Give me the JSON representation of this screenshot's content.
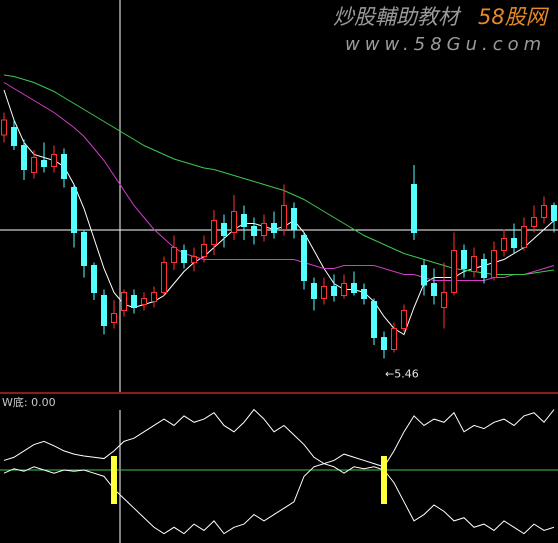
{
  "watermark": {
    "title": "炒股輔助教材",
    "brand": "58股网",
    "url": "www.58Gu.com"
  },
  "chart_data": [
    {
      "type": "candlestick",
      "up_color": "#ff3232",
      "down_color": "#54ffff",
      "open": [
        6.95,
        7.0,
        6.88,
        6.7,
        6.78,
        6.74,
        6.82,
        6.6,
        6.3,
        6.08,
        5.88,
        5.7,
        5.78,
        5.88,
        5.82,
        5.84,
        5.9,
        6.1,
        6.18,
        6.1,
        6.14,
        6.22,
        6.36,
        6.3,
        6.42,
        6.34,
        6.28,
        6.36,
        6.32,
        6.46,
        6.28,
        5.96,
        5.86,
        5.94,
        5.88,
        5.96,
        5.92,
        5.84,
        5.6,
        5.52,
        5.66,
        6.62,
        6.08,
        5.96,
        5.8,
        5.9,
        6.18,
        6.04,
        6.12,
        6.0,
        6.18,
        6.26,
        6.2,
        6.34,
        6.4,
        6.48
      ],
      "high": [
        7.1,
        7.05,
        6.92,
        6.85,
        6.9,
        6.88,
        6.86,
        6.62,
        6.32,
        6.1,
        5.92,
        5.85,
        5.92,
        5.92,
        5.9,
        5.94,
        6.14,
        6.28,
        6.22,
        6.2,
        6.28,
        6.45,
        6.42,
        6.55,
        6.48,
        6.4,
        6.42,
        6.44,
        6.62,
        6.5,
        6.3,
        6.0,
        6.0,
        6.02,
        6.02,
        6.04,
        5.96,
        5.86,
        5.64,
        5.7,
        5.82,
        6.75,
        6.12,
        6.06,
        6.1,
        6.3,
        6.22,
        6.2,
        6.16,
        6.24,
        6.32,
        6.36,
        6.4,
        6.48,
        6.54,
        6.5
      ],
      "low": [
        6.9,
        6.85,
        6.65,
        6.66,
        6.7,
        6.7,
        6.6,
        6.2,
        6.0,
        5.85,
        5.62,
        5.66,
        5.74,
        5.76,
        5.78,
        5.8,
        5.88,
        6.05,
        6.06,
        6.04,
        6.1,
        6.15,
        6.2,
        6.25,
        6.25,
        6.22,
        6.24,
        6.26,
        6.28,
        6.26,
        5.92,
        5.78,
        5.82,
        5.84,
        5.86,
        5.88,
        5.82,
        5.55,
        5.46,
        5.5,
        5.64,
        6.25,
        5.88,
        5.82,
        5.66,
        5.88,
        6.0,
        6.0,
        5.96,
        5.98,
        6.14,
        6.16,
        6.18,
        6.3,
        6.36,
        6.3
      ],
      "close": [
        7.05,
        6.88,
        6.72,
        6.8,
        6.74,
        6.82,
        6.66,
        6.3,
        6.08,
        5.9,
        5.68,
        5.76,
        5.9,
        5.8,
        5.86,
        5.9,
        6.1,
        6.2,
        6.1,
        6.14,
        6.22,
        6.38,
        6.28,
        6.44,
        6.34,
        6.28,
        6.36,
        6.3,
        6.48,
        6.32,
        5.98,
        5.86,
        5.94,
        5.88,
        5.96,
        5.9,
        5.86,
        5.6,
        5.52,
        5.66,
        5.78,
        6.3,
        5.95,
        5.88,
        5.9,
        6.18,
        6.06,
        6.14,
        6.0,
        6.18,
        6.26,
        6.2,
        6.34,
        6.4,
        6.48,
        6.38
      ],
      "series": [
        {
          "color": "#ffffff",
          "values": [
            7.25,
            7.05,
            6.9,
            6.82,
            6.8,
            6.78,
            6.74,
            6.62,
            6.46,
            6.26,
            6.06,
            5.9,
            5.82,
            5.8,
            5.82,
            5.84,
            5.88,
            5.96,
            6.04,
            6.1,
            6.14,
            6.2,
            6.26,
            6.32,
            6.36,
            6.36,
            6.34,
            6.32,
            6.34,
            6.38,
            6.3,
            6.18,
            6.06,
            5.96,
            5.92,
            5.92,
            5.9,
            5.84,
            5.74,
            5.66,
            5.62,
            5.8,
            5.96,
            6.0,
            6.0,
            6.0,
            6.04,
            6.06,
            6.08,
            6.1,
            6.12,
            6.16,
            6.2,
            6.26,
            6.32,
            6.38
          ]
        },
        {
          "color": "#d23cc8",
          "values": [
            7.3,
            7.26,
            7.22,
            7.18,
            7.14,
            7.1,
            7.05,
            7.0,
            6.94,
            6.86,
            6.78,
            6.68,
            6.58,
            6.48,
            6.4,
            6.32,
            6.26,
            6.2,
            6.16,
            6.14,
            6.12,
            6.12,
            6.12,
            6.12,
            6.12,
            6.12,
            6.12,
            6.12,
            6.12,
            6.12,
            6.1,
            6.08,
            6.06,
            6.06,
            6.08,
            6.08,
            6.08,
            6.08,
            6.06,
            6.04,
            6.02,
            6.02,
            6.0,
            5.98,
            5.98,
            5.98,
            5.98,
            5.98,
            5.98,
            6.0,
            6.0,
            6.02,
            6.02,
            6.04,
            6.06,
            6.08
          ]
        },
        {
          "color": "#3cc850",
          "values": [
            7.35,
            7.34,
            7.32,
            7.3,
            7.27,
            7.24,
            7.2,
            7.16,
            7.12,
            7.08,
            7.04,
            7.0,
            6.96,
            6.92,
            6.88,
            6.85,
            6.82,
            6.79,
            6.77,
            6.75,
            6.73,
            6.72,
            6.7,
            6.68,
            6.66,
            6.64,
            6.62,
            6.6,
            6.58,
            6.55,
            6.52,
            6.48,
            6.44,
            6.4,
            6.36,
            6.32,
            6.28,
            6.25,
            6.22,
            6.19,
            6.16,
            6.14,
            6.12,
            6.1,
            6.08,
            6.06,
            6.05,
            6.04,
            6.03,
            6.02,
            6.02,
            6.02,
            6.02,
            6.03,
            6.04,
            6.05
          ]
        }
      ],
      "ylim": [
        5.25,
        7.85
      ],
      "annotations": [
        {
          "text": "←5.46"
        }
      ]
    },
    {
      "type": "line",
      "title": "W底: 0.00",
      "series": [
        {
          "color": "#ffffff",
          "values": [
            0.15,
            0.2,
            0.3,
            0.4,
            0.45,
            0.38,
            0.3,
            0.25,
            0.22,
            0.2,
            0.18,
            0.3,
            0.45,
            0.5,
            0.6,
            0.7,
            0.8,
            0.7,
            0.85,
            0.75,
            0.8,
            0.9,
            0.7,
            0.6,
            0.75,
            0.95,
            0.8,
            0.6,
            0.7,
            0.55,
            0.4,
            0.2,
            0.1,
            0.15,
            0.25,
            0.2,
            0.15,
            0.1,
            0.05,
            0.3,
            0.6,
            0.85,
            0.7,
            0.8,
            0.75,
            0.9,
            0.6,
            0.7,
            0.65,
            0.75,
            0.8,
            0.7,
            0.85,
            0.9,
            0.75,
            0.95
          ]
        },
        {
          "color": "#ffffff",
          "values": [
            -0.05,
            0.02,
            -0.02,
            0.05,
            0.0,
            -0.05,
            0.0,
            -0.02,
            0.0,
            -0.05,
            -0.1,
            -0.3,
            -0.45,
            -0.6,
            -0.75,
            -0.9,
            -1.0,
            -0.9,
            -1.0,
            -0.85,
            -0.95,
            -0.8,
            -1.0,
            -0.9,
            -0.85,
            -0.7,
            -0.8,
            -0.7,
            -0.6,
            -0.5,
            -0.1,
            0.05,
            0.1,
            0.05,
            -0.05,
            0.05,
            0.02,
            0.05,
            0.0,
            -0.2,
            -0.5,
            -0.8,
            -0.7,
            -0.55,
            -0.65,
            -0.8,
            -0.75,
            -0.9,
            -0.85,
            -0.95,
            -0.8,
            -0.9,
            -1.0,
            -0.85,
            -0.95,
            -0.9
          ]
        }
      ],
      "ylim": [
        -1.1,
        1.1
      ],
      "yticks": [
        0
      ],
      "grid_color": "#3cc850",
      "signals": [
        11,
        38
      ],
      "signal_color": "#ffff3c"
    }
  ]
}
